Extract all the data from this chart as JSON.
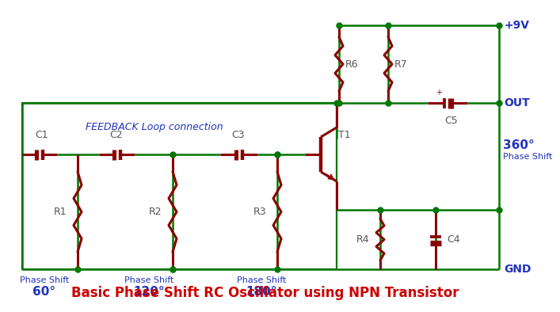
{
  "title": "Basic Phase Shift RC Oscillator using NPN Transistor",
  "title_color": "#CC0000",
  "title_fontsize": 12,
  "bg_color": "#FFFFFF",
  "wire_color": "#007700",
  "component_color": "#8B0000",
  "label_color": "#555555",
  "phase_color": "#2233BB",
  "feedback_text": "FEEDBACK Loop connection",
  "feedback_color": "#2233BB",
  "vcc_text": "+9V",
  "out_text": "OUT",
  "gnd_text": "GND"
}
